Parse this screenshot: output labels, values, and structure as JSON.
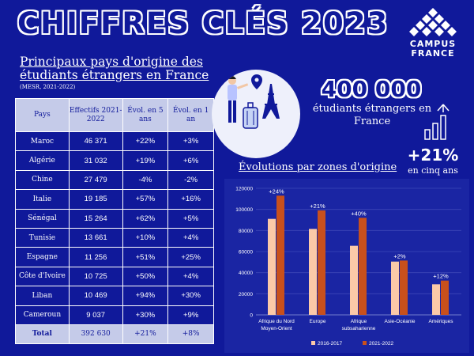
{
  "header": {
    "title": "CHIFFRES CLÉS 2023"
  },
  "logo": {
    "line1": "CAMPUS",
    "line2": "FRANCE"
  },
  "table_section": {
    "heading": "Principaux pays d'origine des étudiants étrangers en France",
    "source": "(MESR, 2021-2022)",
    "columns": [
      "Pays",
      "Effectifs 2021-2022",
      "Évol. en 5 ans",
      "Évol. en 1 an"
    ],
    "rows": [
      [
        "Maroc",
        "46 371",
        "+22%",
        "+3%"
      ],
      [
        "Algérie",
        "31 032",
        "+19%",
        "+6%"
      ],
      [
        "Chine",
        "27 479",
        "-4%",
        "-2%"
      ],
      [
        "Italie",
        "19 185",
        "+57%",
        "+16%"
      ],
      [
        "Sénégal",
        "15 264",
        "+62%",
        "+5%"
      ],
      [
        "Tunisie",
        "13 661",
        "+10%",
        "+4%"
      ],
      [
        "Espagne",
        "11 256",
        "+51%",
        "+25%"
      ],
      [
        "Côte d'Ivoire",
        "10 725",
        "+50%",
        "+4%"
      ],
      [
        "Liban",
        "10 469",
        "+94%",
        "+30%"
      ],
      [
        "Cameroun",
        "9 037",
        "+30%",
        "+9%"
      ]
    ],
    "total": [
      "Total",
      "392 630",
      "+21%",
      "+8%"
    ]
  },
  "stats": {
    "students_value": "400 000",
    "students_caption": "étudiants étrangers en France",
    "growth_value": "+21%",
    "growth_caption": "en cinq ans"
  },
  "chart_data": {
    "type": "bar",
    "title": "Évolutions par zones d'origine",
    "categories": [
      "Afrique du Nord Moyen-Orient",
      "Europe",
      "Afrique subsaharienne",
      "Asie-Océanie",
      "Amériques"
    ],
    "category_lines": [
      [
        "Afrique du Nord",
        "Moyen-Orient"
      ],
      [
        "Europe"
      ],
      [
        "Afrique",
        "subsaharienne"
      ],
      [
        "Asie-Océanie"
      ],
      [
        "Amériques"
      ]
    ],
    "series": [
      {
        "name": "2016-2017",
        "values": [
          91000,
          81500,
          65500,
          50500,
          29000
        ],
        "color": "#fbc9a8"
      },
      {
        "name": "2021-2022",
        "values": [
          113000,
          99000,
          92000,
          51500,
          32500
        ],
        "color": "#c8501c"
      }
    ],
    "annotations": [
      "+24%",
      "+21%",
      "+40%",
      "+2%",
      "+12%"
    ],
    "ylim": [
      0,
      120000
    ],
    "yticks": [
      0,
      20000,
      40000,
      60000,
      80000,
      100000,
      120000
    ],
    "ytick_labels": [
      "0",
      "20000",
      "40000",
      "60000",
      "80000",
      "100000",
      "120000"
    ],
    "grid": true,
    "legend_position": "bottom"
  },
  "colors": {
    "background": "#10199a",
    "table_header": "#c5cbe9",
    "bar_2016": "#fbc9a8",
    "bar_2021": "#c8501c"
  },
  "icons": [
    "campus-france-logo-icon",
    "traveler-illustration-icon",
    "eiffel-tower-icon",
    "suitcase-icon",
    "location-pin-icon",
    "growth-bars-icon"
  ]
}
